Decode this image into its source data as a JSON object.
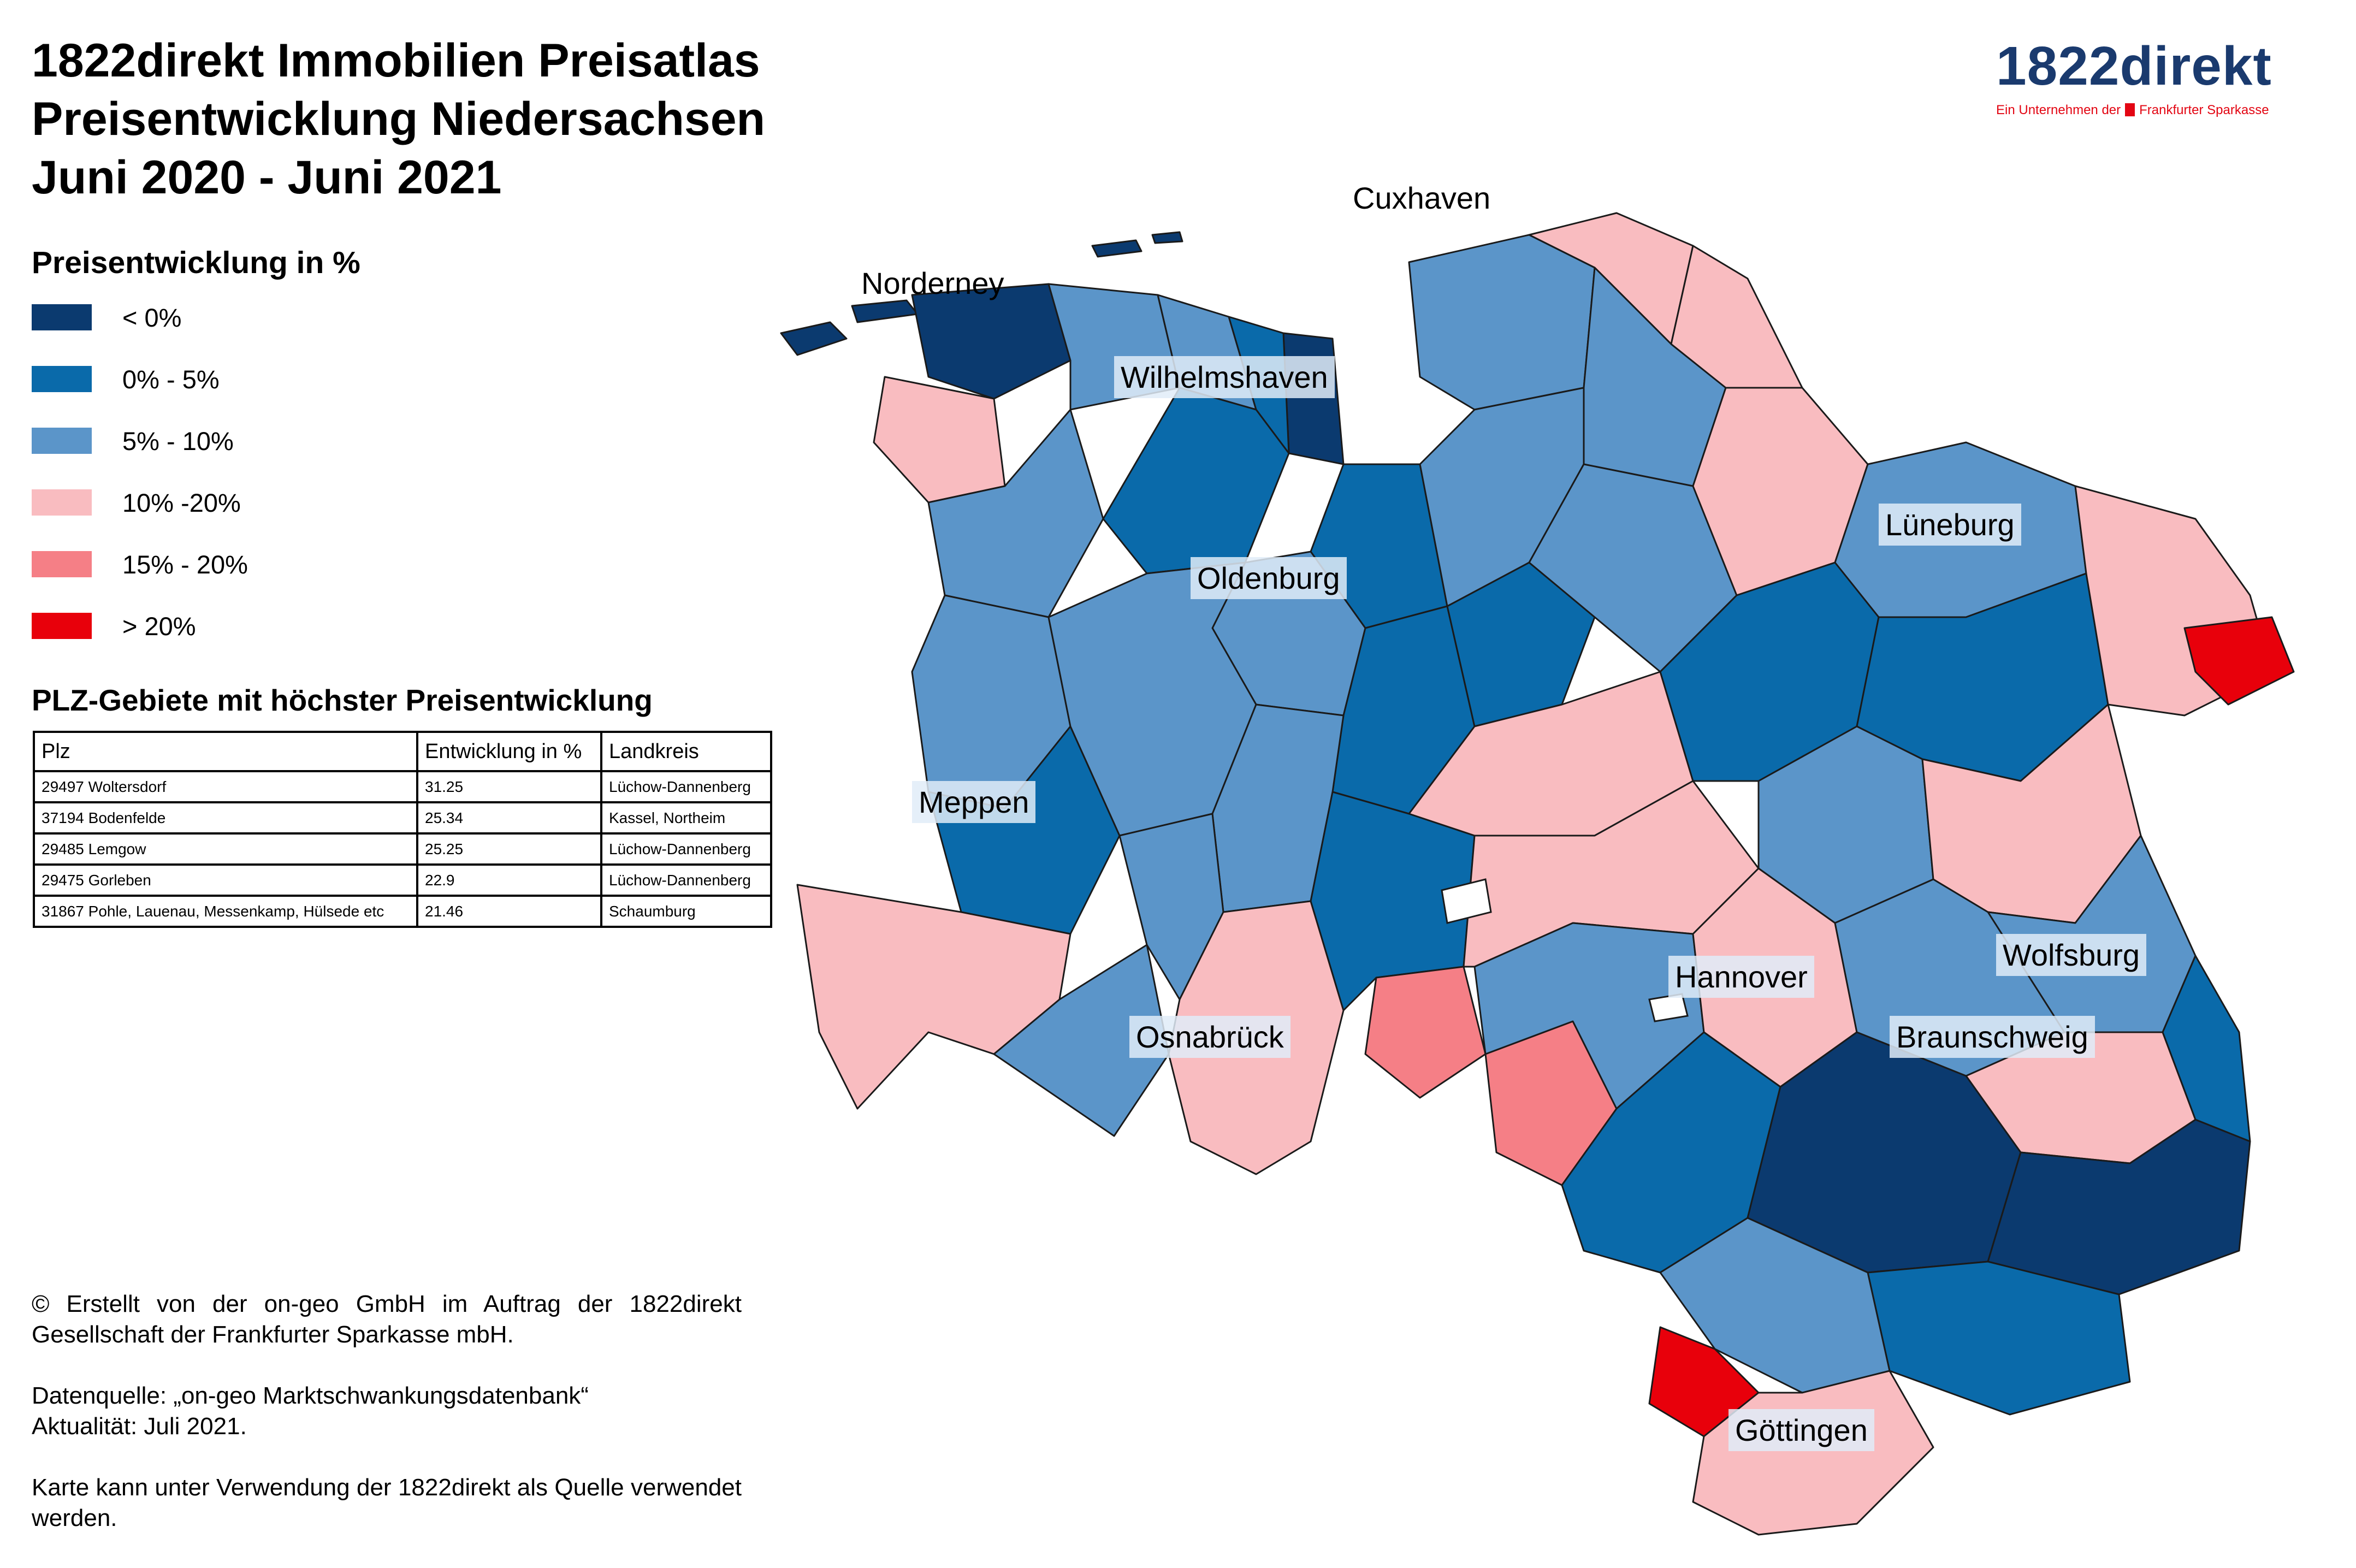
{
  "title": {
    "line1": "1822direkt Immobilien Preisatlas",
    "line2": "Preisentwicklung Niedersachsen",
    "line3": "Juni 2020 - Juni 2021"
  },
  "logo": {
    "wordmark": "1822direkt",
    "tagline_prefix": "Ein Unternehmen der",
    "tagline_suffix": "Frankfurter Sparkasse",
    "brand_color": "#1a3a6e",
    "accent_color": "#e30613"
  },
  "legend": {
    "title": "Preisentwicklung in %",
    "items": [
      {
        "label": "< 0%",
        "color": "#0b3a6f"
      },
      {
        "label": "0% - 5%",
        "color": "#0a6aaa"
      },
      {
        "label": "5% - 10%",
        "color": "#5b95c9"
      },
      {
        "label": "10% -20%",
        "color": "#f9bcc0"
      },
      {
        "label": "15% - 20%",
        "color": "#f57f86"
      },
      {
        "label": "> 20%",
        "color": "#e8000b"
      }
    ]
  },
  "table": {
    "title": "PLZ-Gebiete mit höchster Preisentwicklung",
    "headers": [
      "Plz",
      "Entwicklung in %",
      "Landkreis"
    ],
    "rows": [
      [
        "29497 Woltersdorf",
        "31.25",
        "Lüchow-Dannenberg"
      ],
      [
        "37194 Bodenfelde",
        "25.34",
        "Kassel, Northeim"
      ],
      [
        "29485 Lemgow",
        "25.25",
        "Lüchow-Dannenberg"
      ],
      [
        "29475 Gorleben",
        "22.9",
        "Lüchow-Dannenberg"
      ],
      [
        "31867 Pohle, Lauenau, Messenkamp, Hülsede etc",
        "21.46",
        "Schaumburg"
      ]
    ]
  },
  "credits": {
    "line1": "© Erstellt von der on-geo GmbH im Auftrag der 1822direkt Gesellschaft der Frankfurter Sparkasse mbH.",
    "line2": "Datenquelle: „on-geo Marktschwankungsdatenbank“",
    "line3": "Aktualität: Juli 2021.",
    "line4": "Karte kann unter Verwendung der 1822direkt als Quelle verwendet werden."
  },
  "map": {
    "cities": [
      {
        "name": "Cuxhaven",
        "plain": true
      },
      {
        "name": "Norderney",
        "plain": true
      },
      {
        "name": "Wilhelmshaven",
        "plain": false
      },
      {
        "name": "Oldenburg",
        "plain": false
      },
      {
        "name": "Lüneburg",
        "plain": false
      },
      {
        "name": "Meppen",
        "plain": false
      },
      {
        "name": "Hannover",
        "plain": false
      },
      {
        "name": "Wolfsburg",
        "plain": false
      },
      {
        "name": "Osnabrück",
        "plain": false
      },
      {
        "name": "Braunschweig",
        "plain": false
      },
      {
        "name": "Göttingen",
        "plain": false
      }
    ]
  }
}
